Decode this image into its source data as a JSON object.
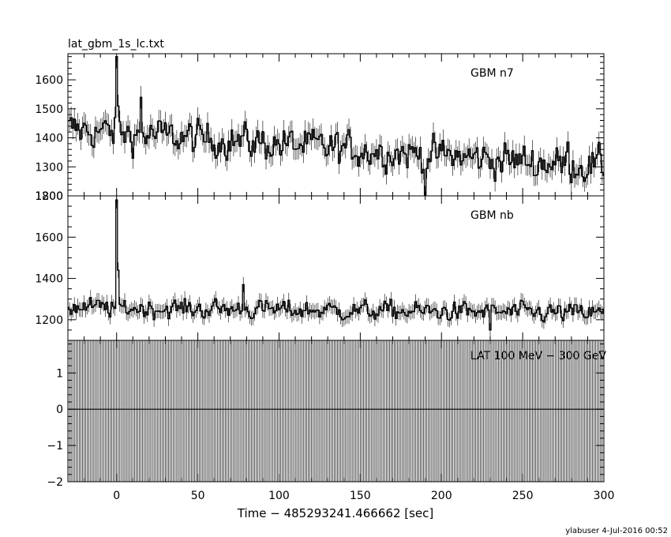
{
  "title": "lat_gbm_1s_lc.txt",
  "footer": "ylabuser   4-Jul-2016 00:52",
  "xlabel": "Time − 485293241.466662 [sec]",
  "xlim": [
    -30,
    300
  ],
  "xticks": [
    0,
    50,
    100,
    150,
    200,
    250,
    300
  ],
  "chart_data": [
    {
      "type": "line",
      "name": "GBM n7",
      "ylim": [
        1200,
        1690
      ],
      "yticks": [
        1200,
        1300,
        1400,
        1500,
        1600
      ],
      "x_start": -30,
      "x_step": 1,
      "n_points": 331,
      "baseline_start": 1430,
      "baseline_end": 1300,
      "noise_amplitude": 45,
      "spike": {
        "x": 0,
        "y": 1680
      },
      "excursions": [
        {
          "x": 15,
          "y": 1540
        },
        {
          "x": 190,
          "y": 1200
        },
        {
          "x": 278,
          "y": 1385
        }
      ]
    },
    {
      "type": "line",
      "name": "GBM nb",
      "ylim": [
        1100,
        1800
      ],
      "yticks": [
        1200,
        1400,
        1600,
        1800
      ],
      "x_start": -30,
      "x_step": 1,
      "n_points": 331,
      "baseline_start": 1260,
      "baseline_end": 1230,
      "noise_amplitude": 35,
      "spike": {
        "x": 0,
        "y": 1780
      },
      "excursions": [
        {
          "x": 78,
          "y": 1370
        },
        {
          "x": 230,
          "y": 1150
        }
      ]
    },
    {
      "type": "bar",
      "name": "LAT 100 MeV − 300 GeV",
      "ylim": [
        -2,
        1.9
      ],
      "yticks": [
        -2,
        -1,
        0,
        1
      ],
      "x_start": -30,
      "x_step": 1,
      "n_points": 331,
      "value": 0,
      "error_low": -2,
      "error_high": 1.9
    }
  ]
}
